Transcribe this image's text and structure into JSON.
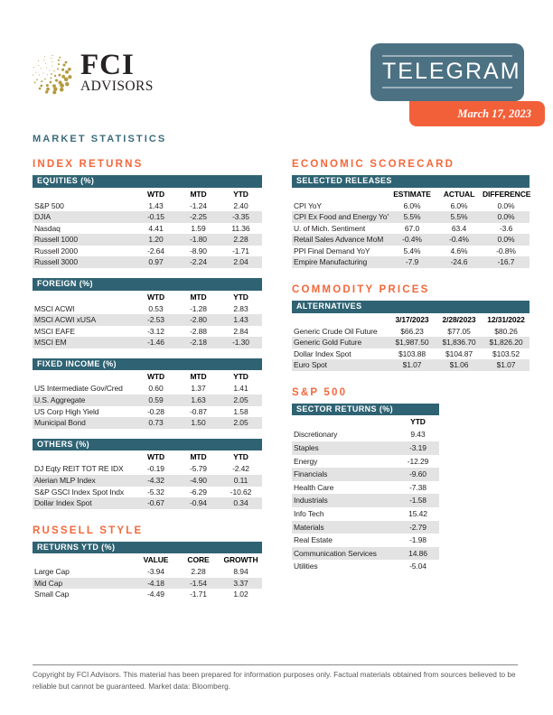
{
  "colors": {
    "table_bar_teal": "#2f6373",
    "badge_teal": "#4c7183",
    "heading_orange": "#f4683c",
    "ribbon_orange": "#f2603a",
    "stripe_gray": "#e3e3e3",
    "page_title_teal": "#3a6b7c",
    "logo_gold": "#b49b40"
  },
  "header": {
    "logo": {
      "name": "FCI",
      "sub": "ADVISORS",
      "icon": "gold-dotted-globe-icon"
    },
    "badge": {
      "title": "TELEGRAM",
      "date": "March 17, 2023"
    }
  },
  "page_title": "MARKET STATISTICS",
  "left_column": {
    "index_returns_heading": "INDEX RETURNS",
    "equities": {
      "title": "EQUITIES (%)",
      "columns": [
        "WTD",
        "MTD",
        "YTD"
      ],
      "rows": [
        [
          "S&P 500",
          "1.43",
          "-1.24",
          "2.40"
        ],
        [
          "DJIA",
          "-0.15",
          "-2.25",
          "-3.35"
        ],
        [
          "Nasdaq",
          "4.41",
          "1.59",
          "11.36"
        ],
        [
          "Russell 1000",
          "1.20",
          "-1.80",
          "2.28"
        ],
        [
          "Russell 2000",
          "-2.64",
          "-8.90",
          "-1.71"
        ],
        [
          "Russell 3000",
          "0.97",
          "-2.24",
          "2.04"
        ]
      ]
    },
    "foreign": {
      "title": "FOREIGN (%)",
      "columns": [
        "WTD",
        "MTD",
        "YTD"
      ],
      "rows": [
        [
          "MSCI ACWI",
          "0.53",
          "-1.28",
          "2.83"
        ],
        [
          "MSCI ACWI xUSA",
          "-2.53",
          "-2.80",
          "1.43"
        ],
        [
          "MSCI EAFE",
          "-3.12",
          "-2.88",
          "2.84"
        ],
        [
          "MSCI EM",
          "-1.46",
          "-2.18",
          "-1.30"
        ]
      ]
    },
    "fixed_income": {
      "title": "FIXED INCOME (%)",
      "columns": [
        "WTD",
        "MTD",
        "YTD"
      ],
      "rows": [
        [
          "US Intermediate Gov/Cred",
          "0.60",
          "1.37",
          "1.41"
        ],
        [
          "U.S. Aggregate",
          "0.59",
          "1.63",
          "2.05"
        ],
        [
          "US Corp High Yield",
          "-0.28",
          "-0.87",
          "1.58"
        ],
        [
          "Municipal Bond",
          "0.73",
          "1.50",
          "2.05"
        ]
      ]
    },
    "others": {
      "title": "OTHERS (%)",
      "columns": [
        "WTD",
        "MTD",
        "YTD"
      ],
      "rows": [
        [
          "DJ Eqty REIT TOT RE IDX",
          "-0.19",
          "-5.79",
          "-2.42"
        ],
        [
          "Alerian MLP Index",
          "-4.32",
          "-4.90",
          "0.11"
        ],
        [
          "S&P GSCI Index Spot Indx",
          "-5.32",
          "-6.29",
          "-10.62"
        ],
        [
          "Dollar Index Spot",
          "-0.67",
          "-0.94",
          "0.34"
        ]
      ]
    },
    "russell_style_heading": "RUSSELL STYLE",
    "russell_returns": {
      "title": "RETURNS YTD (%)",
      "columns": [
        "VALUE",
        "CORE",
        "GROWTH"
      ],
      "rows": [
        [
          "Large Cap",
          "-3.94",
          "2.28",
          "8.94"
        ],
        [
          "Mid Cap",
          "-4.18",
          "-1.54",
          "3.37"
        ],
        [
          "Small Cap",
          "-4.49",
          "-1.71",
          "1.02"
        ]
      ]
    }
  },
  "right_column": {
    "economic_scorecard_heading": "ECONOMIC SCORECARD",
    "selected_releases": {
      "title": "SELECTED RELEASES",
      "columns": [
        "ESTIMATE",
        "ACTUAL",
        "DIFFERENCE"
      ],
      "rows": [
        [
          "CPI YoY",
          "6.0%",
          "6.0%",
          "0.0%"
        ],
        [
          "CPI Ex Food and Energy YoY",
          "5.5%",
          "5.5%",
          "0.0%"
        ],
        [
          "U. of Mich. Sentiment",
          "67.0",
          "63.4",
          "-3.6"
        ],
        [
          "Retail Sales Advance MoM",
          "-0.4%",
          "-0.4%",
          "0.0%"
        ],
        [
          "PPI Final Demand YoY",
          "5.4%",
          "4.6%",
          "-0.8%"
        ],
        [
          "Empire Manufacturing",
          "-7.9",
          "-24.6",
          "-16.7"
        ]
      ]
    },
    "commodity_prices_heading": "COMMODITY PRICES",
    "alternatives": {
      "title": "ALTERNATIVES",
      "columns": [
        "3/17/2023",
        "2/28/2023",
        "12/31/2022"
      ],
      "rows": [
        [
          "Generic Crude Oil Future",
          "$66.23",
          "$77.05",
          "$80.26"
        ],
        [
          "Generic Gold Future",
          "$1,987.50",
          "$1,836.70",
          "$1,826.20"
        ],
        [
          "Dollar Index Spot",
          "$103.88",
          "$104.87",
          "$103.52"
        ],
        [
          "Euro Spot",
          "$1.07",
          "$1.06",
          "$1.07"
        ]
      ]
    },
    "sp500_heading": "S&P 500",
    "sector_returns": {
      "title": "SECTOR RETURNS (%)",
      "columns": [
        "YTD"
      ],
      "rows": [
        [
          "Discretionary",
          "9.43"
        ],
        [
          "Staples",
          "-3.19"
        ],
        [
          "Energy",
          "-12.29"
        ],
        [
          "Financials",
          "-9.60"
        ],
        [
          "Health Care",
          "-7.38"
        ],
        [
          "Industrials",
          "-1.58"
        ],
        [
          "Info Tech",
          "15.42"
        ],
        [
          "Materials",
          "-2.79"
        ],
        [
          "Real Estate",
          "-1.98"
        ],
        [
          "Communication Services",
          "14.86"
        ],
        [
          "Utilities",
          "-5.04"
        ]
      ]
    }
  },
  "footer": {
    "text": "Copyright by FCI Advisors. This material has been prepared for information purposes only. Factual materials obtained from sources believed to be reliable but cannot be guaranteed. Market data: Bloomberg."
  }
}
